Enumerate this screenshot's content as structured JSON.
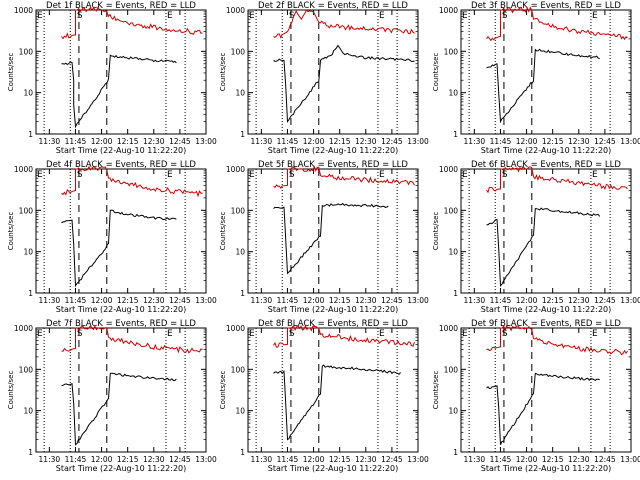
{
  "common": {
    "xlabel": "Start Time (22-Aug-10 11:22:20)",
    "ylabel": "Counts/sec",
    "x_ticks": [
      "11:30",
      "11:45",
      "12:00",
      "12:15",
      "12:30",
      "12:45",
      "13:00"
    ],
    "y_ticks": [
      "1",
      "10",
      "100",
      "1000"
    ],
    "markers": {
      "E": "E",
      "S": "S"
    },
    "colors": {
      "events": "#000000",
      "lld": "#d40000",
      "axes": "#000000",
      "background": "#ffffff"
    }
  },
  "chart_data": [
    {
      "type": "line",
      "title": "Det 1f BLACK = Events, RED = LLD",
      "x_range": [
        "11:22:20",
        "13:00"
      ],
      "ylim": [
        1,
        1000
      ],
      "y_scale": "log",
      "dotted_lines": [
        "11:27",
        "11:42",
        "12:37",
        "12:48"
      ],
      "dashed_lines": [
        "11:47",
        "12:03"
      ],
      "series": [
        {
          "key": "lld",
          "points": [
            [
              "11:37",
              230
            ],
            [
              "11:42",
              240
            ],
            [
              "11:45",
              250
            ],
            [
              "11:45",
              1000
            ],
            [
              "11:46",
              1000
            ],
            [
              "12:03",
              1000
            ],
            [
              "12:04",
              700
            ],
            [
              "12:15",
              500
            ],
            [
              "12:30",
              380
            ],
            [
              "12:45",
              320
            ],
            [
              "12:58",
              280
            ]
          ]
        },
        {
          "key": "events",
          "points": [
            [
              "11:37",
              50
            ],
            [
              "11:42",
              52
            ],
            [
              "11:43",
              54
            ],
            [
              "11:44",
              20
            ],
            [
              "11:44",
              5
            ],
            [
              "11:45",
              1.5
            ],
            [
              "12:04",
              20
            ],
            [
              "12:05",
              80
            ],
            [
              "12:15",
              70
            ],
            [
              "12:30",
              60
            ],
            [
              "12:43",
              55
            ]
          ]
        }
      ]
    },
    {
      "type": "line",
      "title": "Det 2f BLACK = Events, RED = LLD",
      "x_range": [
        "11:22:20",
        "13:00"
      ],
      "ylim": [
        1,
        1000
      ],
      "y_scale": "log",
      "dotted_lines": [
        "11:27",
        "11:42",
        "12:37",
        "12:48"
      ],
      "dashed_lines": [
        "11:47",
        "12:03"
      ],
      "series": [
        {
          "key": "lld",
          "points": [
            [
              "11:37",
              230
            ],
            [
              "11:42",
              250
            ],
            [
              "11:45",
              300
            ],
            [
              "11:50",
              900
            ],
            [
              "11:53",
              600
            ],
            [
              "11:56",
              1000
            ],
            [
              "12:00",
              900
            ],
            [
              "12:03",
              500
            ],
            [
              "12:10",
              400
            ],
            [
              "12:20",
              380
            ],
            [
              "12:35",
              350
            ],
            [
              "12:50",
              300
            ],
            [
              "12:58",
              290
            ]
          ]
        },
        {
          "key": "events",
          "points": [
            [
              "11:37",
              60
            ],
            [
              "11:42",
              62
            ],
            [
              "11:43",
              60
            ],
            [
              "11:44",
              15
            ],
            [
              "11:45",
              2
            ],
            [
              "12:03",
              20
            ],
            [
              "12:04",
              60
            ],
            [
              "12:10",
              80
            ],
            [
              "12:14",
              140
            ],
            [
              "12:17",
              90
            ],
            [
              "12:30",
              70
            ],
            [
              "12:45",
              65
            ],
            [
              "12:58",
              60
            ]
          ]
        }
      ]
    },
    {
      "type": "line",
      "title": "Det 3f BLACK = Events, RED = LLD",
      "x_range": [
        "11:22:20",
        "13:00"
      ],
      "ylim": [
        1,
        1000
      ],
      "y_scale": "log",
      "dotted_lines": [
        "11:27",
        "11:42",
        "12:37",
        "12:48"
      ],
      "dashed_lines": [
        "11:47",
        "12:03"
      ],
      "series": [
        {
          "key": "lld",
          "points": [
            [
              "11:37",
              200
            ],
            [
              "11:42",
              210
            ],
            [
              "11:45",
              230
            ],
            [
              "11:45",
              1000
            ],
            [
              "11:46",
              1000
            ],
            [
              "12:03",
              1000
            ],
            [
              "12:04",
              600
            ],
            [
              "12:15",
              400
            ],
            [
              "12:30",
              300
            ],
            [
              "12:45",
              250
            ],
            [
              "12:58",
              220
            ]
          ]
        },
        {
          "key": "events",
          "points": [
            [
              "11:37",
              40
            ],
            [
              "11:42",
              48
            ],
            [
              "11:43",
              50
            ],
            [
              "11:44",
              10
            ],
            [
              "11:45",
              2
            ],
            [
              "12:04",
              20
            ],
            [
              "12:05",
              110
            ],
            [
              "12:15",
              95
            ],
            [
              "12:30",
              80
            ],
            [
              "12:42",
              70
            ]
          ]
        }
      ]
    },
    {
      "type": "line",
      "title": "Det 4f BLACK = Events, RED = LLD",
      "x_range": [
        "11:22:20",
        "13:00"
      ],
      "ylim": [
        1,
        1000
      ],
      "y_scale": "log",
      "dotted_lines": [
        "11:27",
        "11:42",
        "12:37",
        "12:48"
      ],
      "dashed_lines": [
        "11:47",
        "12:03"
      ],
      "series": [
        {
          "key": "lld",
          "points": [
            [
              "11:37",
              260
            ],
            [
              "11:42",
              280
            ],
            [
              "11:45",
              300
            ],
            [
              "11:45",
              1000
            ],
            [
              "11:46",
              1000
            ],
            [
              "12:03",
              1000
            ],
            [
              "12:04",
              600
            ],
            [
              "12:15",
              450
            ],
            [
              "12:30",
              330
            ],
            [
              "12:45",
              280
            ],
            [
              "12:58",
              250
            ]
          ]
        },
        {
          "key": "events",
          "points": [
            [
              "11:37",
              50
            ],
            [
              "11:42",
              55
            ],
            [
              "11:43",
              58
            ],
            [
              "11:44",
              15
            ],
            [
              "11:45",
              1.5
            ],
            [
              "12:04",
              15
            ],
            [
              "12:05",
              100
            ],
            [
              "12:15",
              80
            ],
            [
              "12:30",
              65
            ],
            [
              "12:43",
              60
            ]
          ]
        }
      ]
    },
    {
      "type": "line",
      "title": "Det 5f BLACK = Events, RED = LLD",
      "x_range": [
        "11:22:20",
        "13:00"
      ],
      "ylim": [
        1,
        1000
      ],
      "y_scale": "log",
      "dotted_lines": [
        "11:27",
        "11:42",
        "12:37",
        "12:48"
      ],
      "dashed_lines": [
        "11:47",
        "12:03"
      ],
      "series": [
        {
          "key": "lld",
          "points": [
            [
              "11:37",
              380
            ],
            [
              "11:42",
              390
            ],
            [
              "11:45",
              400
            ],
            [
              "11:45",
              1000
            ],
            [
              "11:46",
              1000
            ],
            [
              "12:03",
              1000
            ],
            [
              "12:04",
              700
            ],
            [
              "12:15",
              600
            ],
            [
              "12:30",
              550
            ],
            [
              "12:45",
              500
            ],
            [
              "12:58",
              450
            ]
          ]
        },
        {
          "key": "events",
          "points": [
            [
              "11:37",
              110
            ],
            [
              "11:42",
              115
            ],
            [
              "11:43",
              120
            ],
            [
              "11:44",
              20
            ],
            [
              "11:45",
              3
            ],
            [
              "12:04",
              25
            ],
            [
              "12:05",
              130
            ],
            [
              "12:15",
              140
            ],
            [
              "12:30",
              130
            ],
            [
              "12:43",
              125
            ]
          ]
        }
      ]
    },
    {
      "type": "line",
      "title": "Det 6f BLACK = Events, RED = LLD",
      "x_range": [
        "11:22:20",
        "13:00"
      ],
      "ylim": [
        1,
        1000
      ],
      "y_scale": "log",
      "dotted_lines": [
        "11:27",
        "11:42",
        "12:37",
        "12:48"
      ],
      "dashed_lines": [
        "11:47",
        "12:03"
      ],
      "series": [
        {
          "key": "lld",
          "points": [
            [
              "11:37",
              310
            ],
            [
              "11:42",
              320
            ],
            [
              "11:45",
              330
            ],
            [
              "11:45",
              1000
            ],
            [
              "11:46",
              1000
            ],
            [
              "12:03",
              1000
            ],
            [
              "12:04",
              650
            ],
            [
              "12:15",
              550
            ],
            [
              "12:30",
              450
            ],
            [
              "12:45",
              380
            ],
            [
              "12:58",
              340
            ]
          ]
        },
        {
          "key": "events",
          "points": [
            [
              "11:37",
              45
            ],
            [
              "11:42",
              55
            ],
            [
              "11:43",
              60
            ],
            [
              "11:44",
              12
            ],
            [
              "11:45",
              1.5
            ],
            [
              "12:04",
              25
            ],
            [
              "12:05",
              110
            ],
            [
              "12:15",
              100
            ],
            [
              "12:30",
              85
            ],
            [
              "12:42",
              75
            ]
          ]
        }
      ]
    },
    {
      "type": "line",
      "title": "Det 7f BLACK = Events, RED = LLD",
      "x_range": [
        "11:22:20",
        "13:00"
      ],
      "ylim": [
        1,
        1000
      ],
      "y_scale": "log",
      "dotted_lines": [
        "11:27",
        "11:42",
        "12:37",
        "12:48"
      ],
      "dashed_lines": [
        "11:47",
        "12:03"
      ],
      "series": [
        {
          "key": "lld",
          "points": [
            [
              "11:37",
              280
            ],
            [
              "11:42",
              300
            ],
            [
              "11:45",
              320
            ],
            [
              "11:45",
              1000
            ],
            [
              "11:46",
              1000
            ],
            [
              "12:03",
              1000
            ],
            [
              "12:04",
              600
            ],
            [
              "12:15",
              450
            ],
            [
              "12:30",
              350
            ],
            [
              "12:45",
              300
            ],
            [
              "12:58",
              270
            ]
          ]
        },
        {
          "key": "events",
          "points": [
            [
              "11:37",
              40
            ],
            [
              "11:42",
              44
            ],
            [
              "11:43",
              45
            ],
            [
              "11:44",
              15
            ],
            [
              "11:45",
              1.5
            ],
            [
              "12:04",
              20
            ],
            [
              "12:05",
              80
            ],
            [
              "12:15",
              70
            ],
            [
              "12:30",
              60
            ],
            [
              "12:43",
              55
            ]
          ]
        }
      ]
    },
    {
      "type": "line",
      "title": "Det 8f BLACK = Events, RED = LLD",
      "x_range": [
        "11:22:20",
        "13:00"
      ],
      "ylim": [
        1,
        1000
      ],
      "y_scale": "log",
      "dotted_lines": [
        "11:27",
        "11:42",
        "12:37",
        "12:48"
      ],
      "dashed_lines": [
        "11:47",
        "12:03"
      ],
      "series": [
        {
          "key": "lld",
          "points": [
            [
              "11:37",
              380
            ],
            [
              "11:42",
              390
            ],
            [
              "11:45",
              400
            ],
            [
              "11:45",
              1000
            ],
            [
              "11:46",
              1000
            ],
            [
              "12:03",
              1000
            ],
            [
              "12:04",
              700
            ],
            [
              "12:15",
              600
            ],
            [
              "12:30",
              500
            ],
            [
              "12:45",
              450
            ],
            [
              "12:58",
              400
            ]
          ]
        },
        {
          "key": "events",
          "points": [
            [
              "11:37",
              80
            ],
            [
              "11:42",
              85
            ],
            [
              "11:43",
              90
            ],
            [
              "11:44",
              15
            ],
            [
              "11:45",
              2
            ],
            [
              "12:04",
              25
            ],
            [
              "12:05",
              120
            ],
            [
              "12:15",
              110
            ],
            [
              "12:30",
              100
            ],
            [
              "12:45",
              85
            ],
            [
              "12:50",
              80
            ]
          ]
        }
      ]
    },
    {
      "type": "line",
      "title": "Det 9f BLACK = Events, RED = LLD",
      "x_range": [
        "11:22:20",
        "13:00"
      ],
      "ylim": [
        1,
        1000
      ],
      "y_scale": "log",
      "dotted_lines": [
        "11:27",
        "11:42",
        "12:37",
        "12:48"
      ],
      "dashed_lines": [
        "11:47",
        "12:03"
      ],
      "series": [
        {
          "key": "lld",
          "points": [
            [
              "11:37",
              300
            ],
            [
              "11:42",
              330
            ],
            [
              "11:45",
              350
            ],
            [
              "11:45",
              1000
            ],
            [
              "11:46",
              1000
            ],
            [
              "12:03",
              1000
            ],
            [
              "12:04",
              550
            ],
            [
              "12:15",
              400
            ],
            [
              "12:30",
              320
            ],
            [
              "12:45",
              280
            ],
            [
              "12:58",
              250
            ]
          ]
        },
        {
          "key": "events",
          "points": [
            [
              "11:37",
              35
            ],
            [
              "11:42",
              38
            ],
            [
              "11:43",
              40
            ],
            [
              "11:44",
              12
            ],
            [
              "11:45",
              1.5
            ],
            [
              "12:04",
              25
            ],
            [
              "12:05",
              80
            ],
            [
              "12:15",
              70
            ],
            [
              "12:30",
              60
            ],
            [
              "12:42",
              55
            ]
          ]
        }
      ]
    }
  ]
}
